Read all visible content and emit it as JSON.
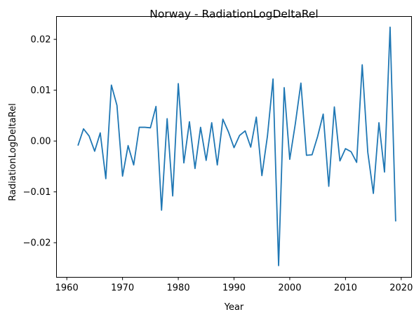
{
  "chart_data": {
    "type": "line",
    "title": "Norway - RadiationLogDeltaRel",
    "xlabel": "Year",
    "ylabel": "RadiationLogDeltaRel",
    "xlim": [
      1958.15,
      2021.85
    ],
    "ylim": [
      -0.0268,
      0.0245
    ],
    "x_ticks": [
      1960,
      1970,
      1980,
      1990,
      2000,
      2010,
      2020
    ],
    "x_tick_labels": [
      "1960",
      "1970",
      "1980",
      "1990",
      "2000",
      "2010",
      "2020"
    ],
    "y_ticks": [
      0.02,
      0.01,
      0.0,
      -0.01,
      -0.02
    ],
    "y_tick_labels": [
      "0.02",
      "0.01",
      "0.00",
      "−0.01",
      "−0.02"
    ],
    "grid": false,
    "line_color": "#1f77b4",
    "series": [
      {
        "x": [
          1962,
          1963,
          1964,
          1965,
          1966,
          1967,
          1968,
          1969,
          1970,
          1971,
          1972,
          1973,
          1974,
          1975,
          1976,
          1977,
          1978,
          1979,
          1980,
          1981,
          1982,
          1983,
          1984,
          1985,
          1986,
          1987,
          1988,
          1989,
          1990,
          1991,
          1992,
          1993,
          1994,
          1995,
          1996,
          1997,
          1998,
          1999,
          2000,
          2001,
          2002,
          2003,
          2004,
          2005,
          2006,
          2007,
          2008,
          2009,
          2010,
          2011,
          2012,
          2013,
          2014,
          2015,
          2016,
          2017,
          2018,
          2019
        ],
        "y": [
          -0.0009,
          0.0024,
          0.001,
          -0.002,
          0.0016,
          -0.0074,
          0.011,
          0.007,
          -0.0069,
          -0.0009,
          -0.0047,
          0.0027,
          0.0027,
          0.0026,
          0.0068,
          -0.0136,
          0.0044,
          -0.0108,
          0.0113,
          -0.0043,
          0.0038,
          -0.0054,
          0.0027,
          -0.0038,
          0.0036,
          -0.0047,
          0.0043,
          0.0018,
          -0.0013,
          0.0011,
          0.002,
          -0.0012,
          0.0047,
          -0.0068,
          0.001,
          0.0122,
          -0.0245,
          0.0105,
          -0.0036,
          0.0034,
          0.0114,
          -0.0028,
          -0.0027,
          0.0009,
          0.0053,
          -0.0089,
          0.0067,
          -0.0039,
          -0.0015,
          -0.0021,
          -0.0042,
          0.015,
          -0.0022,
          -0.0103,
          0.0036,
          -0.0061,
          0.0224,
          -0.0158
        ]
      }
    ]
  }
}
